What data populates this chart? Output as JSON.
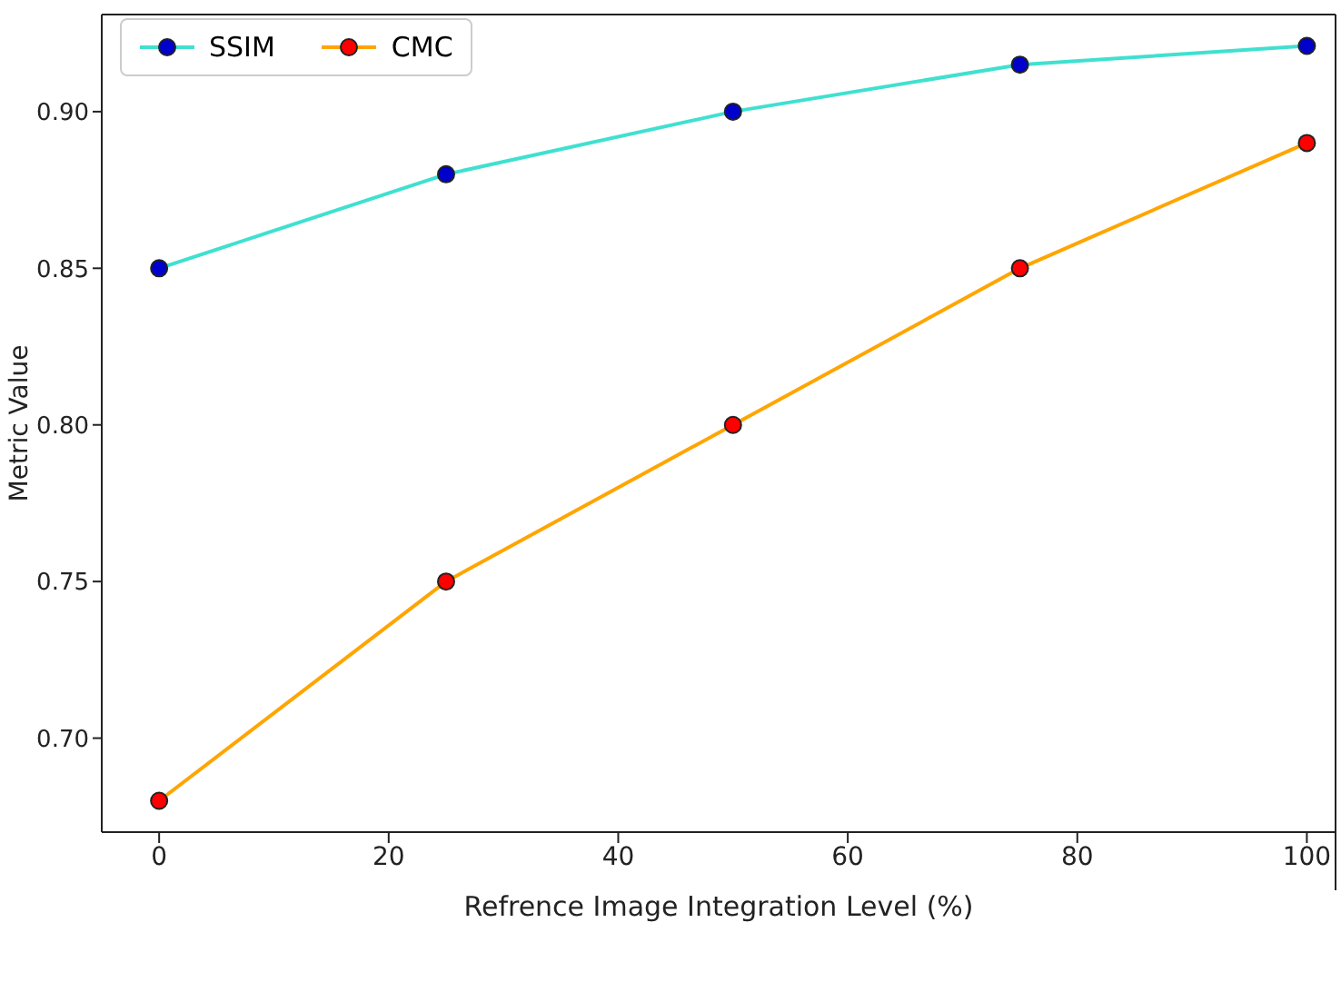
{
  "chart_data": {
    "type": "line",
    "xlabel": "Refrence Image Integration Level (%)",
    "ylabel": "Metric Value",
    "x": [
      0,
      25,
      50,
      75,
      100
    ],
    "series": [
      {
        "name": "SSIM",
        "color": "#40e0d0",
        "colors": [
          "#0000cd",
          "#0000cd",
          "#0000cd",
          "#0000cd",
          "#0000cd"
        ],
        "values": [
          0.85,
          0.88,
          0.9,
          0.915,
          0.921
        ]
      },
      {
        "name": "CMC",
        "color": "#ffa500",
        "colors": [
          "#ff0000",
          "#ff0000",
          "#ff0000",
          "#ff0000",
          "#ff0000"
        ],
        "values": [
          0.68,
          0.75,
          0.8,
          0.85,
          0.89
        ]
      }
    ],
    "xlim": [
      -5,
      102.5
    ],
    "xticks": [
      0,
      20,
      40,
      60,
      80,
      100
    ],
    "ylim": [
      0.67,
      0.931
    ],
    "yticks": [
      {
        "value": 0.7,
        "label": "0.70"
      },
      {
        "value": 0.75,
        "label": "0.75"
      },
      {
        "value": 0.8,
        "label": "0.80"
      },
      {
        "value": 0.85,
        "label": "0.85"
      },
      {
        "value": 0.9,
        "label": "0.90"
      }
    ],
    "marker": "circle",
    "line_style": "solid",
    "grid": false,
    "legend": "top left"
  }
}
